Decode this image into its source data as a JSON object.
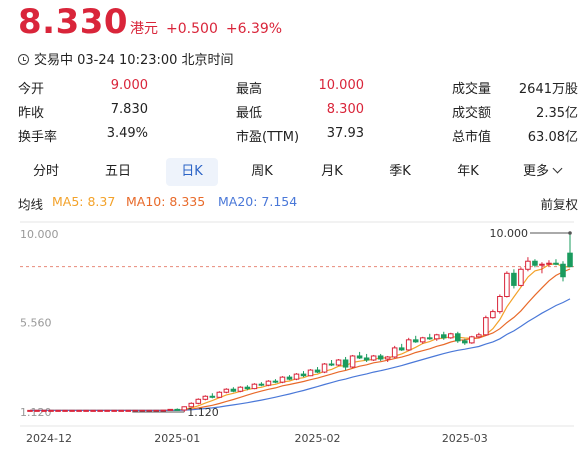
{
  "header": {
    "price": "8.330",
    "currency": "港元",
    "change": "+0.500",
    "change_pct": "+6.39%"
  },
  "status": {
    "text": "交易中 03-24 10:23:00 北京时间",
    "icon": "clock-icon"
  },
  "stats": [
    {
      "label": "今开",
      "value": "9.000",
      "highlight": true
    },
    {
      "label": "最高",
      "value": "10.000",
      "highlight": true
    },
    {
      "label": "成交量",
      "value": "2641万股",
      "highlight": false
    },
    {
      "label": "昨收",
      "value": "7.830",
      "highlight": false
    },
    {
      "label": "最低",
      "value": "8.300",
      "highlight": true
    },
    {
      "label": "成交额",
      "value": "2.35亿",
      "highlight": false
    },
    {
      "label": "换手率",
      "value": "3.49%",
      "highlight": false
    },
    {
      "label": "市盈(TTM)",
      "value": "37.93",
      "highlight": false
    },
    {
      "label": "总市值",
      "value": "63.08亿",
      "highlight": false
    }
  ],
  "tabs": [
    "分时",
    "五日",
    "日K",
    "周K",
    "月K",
    "季K",
    "年K",
    "更多"
  ],
  "active_tab": "日K",
  "indicators": {
    "label": "均线",
    "ma5": "MA5: 8.37",
    "ma10": "MA10: 8.335",
    "ma20": "MA20: 7.154",
    "adjust": "前复权"
  },
  "colors": {
    "up": "#d9253a",
    "down": "#1a9b5e",
    "ma5": "#f3a22a",
    "ma10": "#e86a2a",
    "ma20": "#4a78d8",
    "tab_active": "#2b63c6"
  },
  "chart_data": {
    "type": "candlestick",
    "y_ticks": [
      "10.000",
      "5.560",
      "1.120"
    ],
    "ylim": [
      1.12,
      10.0
    ],
    "x_ticks": [
      "2024-12",
      "2025-01",
      "2025-02",
      "2025-03"
    ],
    "x_tick_index": [
      0,
      21,
      41,
      62
    ],
    "current_price": 8.33,
    "annotations": {
      "high": "10.000",
      "low": "1.120"
    },
    "high_index": 77,
    "low_index": 22,
    "candles": [
      [
        1.2,
        1.2,
        1.2,
        1.2
      ],
      [
        1.2,
        1.2,
        1.2,
        1.2
      ],
      [
        1.2,
        1.2,
        1.2,
        1.2
      ],
      [
        1.2,
        1.2,
        1.2,
        1.2
      ],
      [
        1.2,
        1.2,
        1.2,
        1.2
      ],
      [
        1.2,
        1.2,
        1.2,
        1.2
      ],
      [
        1.2,
        1.2,
        1.2,
        1.2
      ],
      [
        1.2,
        1.2,
        1.2,
        1.2
      ],
      [
        1.2,
        1.2,
        1.2,
        1.2
      ],
      [
        1.2,
        1.2,
        1.2,
        1.2
      ],
      [
        1.2,
        1.2,
        1.2,
        1.2
      ],
      [
        1.2,
        1.2,
        1.2,
        1.2
      ],
      [
        1.2,
        1.2,
        1.2,
        1.2
      ],
      [
        1.2,
        1.2,
        1.2,
        1.2
      ],
      [
        1.2,
        1.2,
        1.2,
        1.2
      ],
      [
        1.2,
        1.2,
        1.2,
        1.2
      ],
      [
        1.2,
        1.2,
        1.2,
        1.2
      ],
      [
        1.2,
        1.2,
        1.2,
        1.2
      ],
      [
        1.2,
        1.2,
        1.2,
        1.2
      ],
      [
        1.2,
        1.22,
        1.18,
        1.21
      ],
      [
        1.21,
        1.26,
        1.2,
        1.25
      ],
      [
        1.25,
        1.3,
        1.2,
        1.22
      ],
      [
        1.22,
        1.4,
        1.12,
        1.38
      ],
      [
        1.38,
        1.6,
        1.35,
        1.55
      ],
      [
        1.55,
        1.8,
        1.5,
        1.75
      ],
      [
        1.75,
        1.95,
        1.7,
        1.9
      ],
      [
        1.9,
        2.05,
        1.8,
        1.85
      ],
      [
        1.85,
        2.15,
        1.82,
        2.1
      ],
      [
        2.1,
        2.3,
        2.05,
        2.25
      ],
      [
        2.25,
        2.35,
        2.1,
        2.15
      ],
      [
        2.15,
        2.4,
        2.1,
        2.35
      ],
      [
        2.35,
        2.45,
        2.2,
        2.28
      ],
      [
        2.28,
        2.55,
        2.25,
        2.5
      ],
      [
        2.5,
        2.6,
        2.4,
        2.45
      ],
      [
        2.45,
        2.7,
        2.4,
        2.65
      ],
      [
        2.65,
        2.75,
        2.55,
        2.6
      ],
      [
        2.6,
        2.9,
        2.55,
        2.85
      ],
      [
        2.85,
        2.95,
        2.7,
        2.75
      ],
      [
        2.75,
        3.05,
        2.7,
        3.0
      ],
      [
        3.0,
        3.15,
        2.85,
        2.92
      ],
      [
        2.92,
        3.25,
        2.9,
        3.2
      ],
      [
        3.2,
        3.35,
        3.05,
        3.1
      ],
      [
        3.1,
        3.55,
        3.05,
        3.5
      ],
      [
        3.5,
        3.7,
        3.4,
        3.45
      ],
      [
        3.45,
        3.75,
        3.4,
        3.7
      ],
      [
        3.7,
        3.85,
        3.2,
        3.35
      ],
      [
        3.35,
        3.95,
        3.3,
        3.9
      ],
      [
        3.9,
        4.1,
        3.75,
        3.8
      ],
      [
        3.8,
        4.0,
        3.6,
        3.7
      ],
      [
        3.7,
        3.95,
        3.65,
        3.9
      ],
      [
        3.9,
        4.0,
        3.65,
        3.75
      ],
      [
        3.75,
        3.9,
        3.6,
        3.85
      ],
      [
        3.85,
        4.4,
        3.8,
        4.3
      ],
      [
        4.3,
        4.5,
        4.15,
        4.2
      ],
      [
        4.2,
        4.8,
        4.15,
        4.7
      ],
      [
        4.7,
        4.9,
        4.55,
        4.6
      ],
      [
        4.6,
        4.85,
        4.5,
        4.8
      ],
      [
        4.8,
        5.0,
        4.7,
        4.75
      ],
      [
        4.75,
        5.0,
        4.65,
        4.95
      ],
      [
        4.95,
        5.1,
        4.7,
        4.8
      ],
      [
        4.8,
        5.05,
        4.75,
        5.0
      ],
      [
        5.0,
        5.1,
        4.55,
        4.65
      ],
      [
        4.65,
        4.75,
        4.45,
        4.55
      ],
      [
        4.55,
        4.9,
        4.5,
        4.85
      ],
      [
        4.85,
        5.05,
        4.8,
        4.95
      ],
      [
        4.95,
        5.9,
        4.9,
        5.8
      ],
      [
        5.8,
        6.2,
        5.75,
        6.1
      ],
      [
        6.1,
        6.95,
        6.0,
        6.85
      ],
      [
        6.85,
        8.1,
        6.8,
        8.0
      ],
      [
        8.0,
        8.2,
        7.25,
        7.4
      ],
      [
        7.4,
        8.3,
        7.35,
        8.2
      ],
      [
        8.2,
        8.8,
        8.1,
        8.6
      ],
      [
        8.6,
        8.7,
        8.3,
        8.4
      ],
      [
        8.4,
        8.55,
        8.0,
        8.45
      ],
      [
        8.45,
        8.65,
        8.35,
        8.5
      ],
      [
        8.5,
        8.7,
        8.4,
        8.45
      ],
      [
        8.45,
        8.6,
        7.6,
        7.83
      ],
      [
        9.0,
        10.0,
        8.3,
        8.33
      ]
    ]
  }
}
